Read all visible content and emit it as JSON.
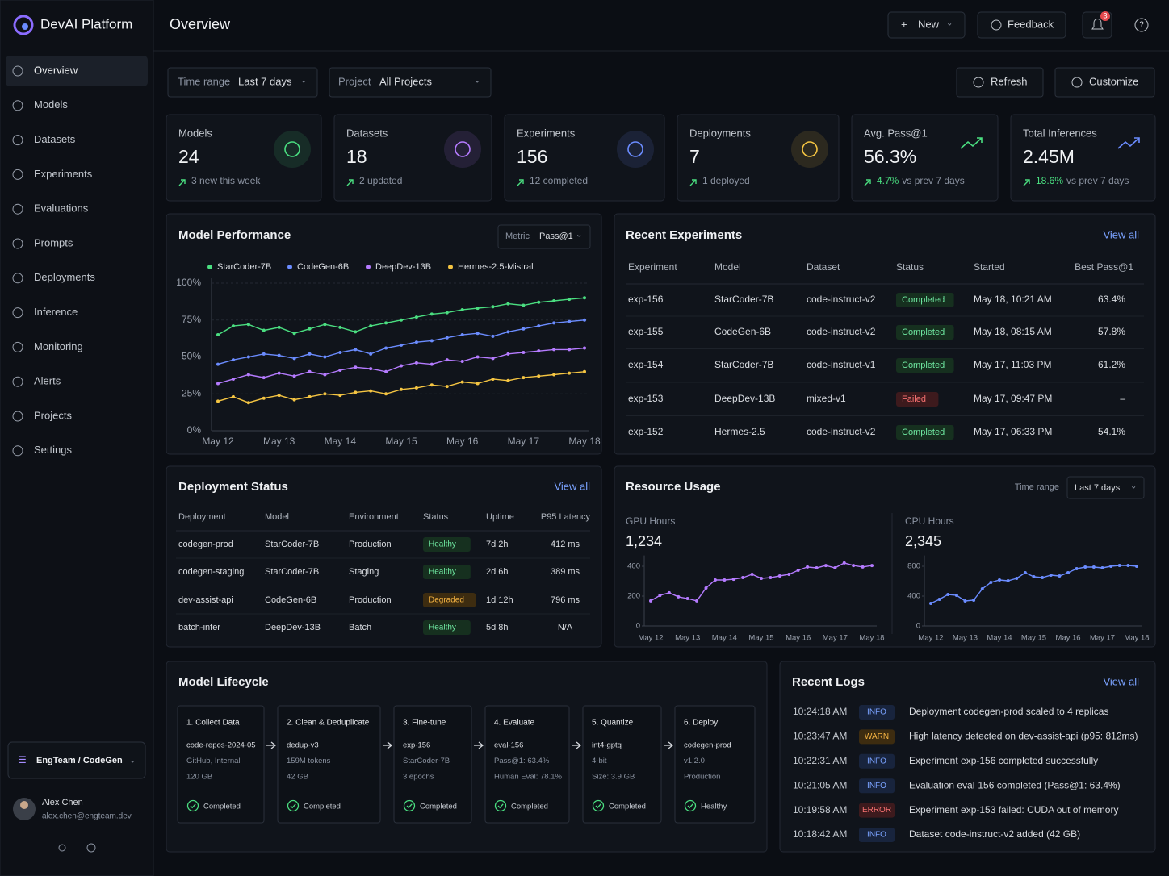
{
  "sidebar": {
    "brand": "DevAI Platform",
    "nav": [
      "Overview",
      "Models",
      "Datasets",
      "Experiments",
      "Evaluations",
      "Prompts",
      "Deployments",
      "Inference",
      "Monitoring",
      "Alerts",
      "Projects",
      "Settings"
    ],
    "workspace": "EngTeam / CodeGen",
    "user": {
      "name": "Alex Chen",
      "email": "alex.chen@engteam.dev"
    }
  },
  "header": {
    "title": "Overview",
    "new": "New",
    "feedback": "Feedback",
    "notifications": "3"
  },
  "filters": {
    "time_range_label": "Time range",
    "time_range": "Last 7 days",
    "project_label": "Project",
    "project": "All Projects",
    "refresh": "Refresh",
    "customize": "Customize"
  },
  "stats": [
    {
      "label": "Models",
      "value": "24",
      "note": "3 new this week"
    },
    {
      "label": "Datasets",
      "value": "18",
      "note": "2 updated"
    },
    {
      "label": "Experiments",
      "value": "156",
      "note": "12 completed"
    },
    {
      "label": "Deployments",
      "value": "7",
      "note": "1 deployed"
    },
    {
      "label": "Avg. Pass@1",
      "value": "56.3%",
      "change": "4.7%",
      "note": "vs prev 7 days"
    },
    {
      "label": "Total Inferences",
      "value": "2.45M",
      "change": "18.6%",
      "note": "vs prev 7 days"
    }
  ],
  "model_performance": {
    "metric_label": "Metric",
    "metric": "Pass@1"
  },
  "resource_usage": {
    "title": "Resource Usage",
    "time_range_label": "Time range",
    "time_range": "Last 7 days"
  },
  "chart_data": [
    {
      "type": "line",
      "title": "Model Performance",
      "categories": [
        "May 12",
        null,
        null,
        null,
        "May 13",
        null,
        null,
        null,
        "May 14",
        null,
        null,
        null,
        "May 15",
        null,
        null,
        null,
        "May 16",
        null,
        null,
        null,
        "May 17",
        null,
        null,
        null,
        "May 18"
      ],
      "series": [
        {
          "name": "StarCoder-7B",
          "color": "#4ade80",
          "values": [
            65,
            71,
            72,
            68,
            70,
            66,
            69,
            72,
            70,
            67,
            71,
            73,
            75,
            77,
            79,
            80,
            82,
            83,
            84,
            86,
            85,
            87,
            88,
            89,
            90
          ]
        },
        {
          "name": "CodeGen-6B",
          "color": "#6b8cff",
          "values": [
            45,
            48,
            50,
            52,
            51,
            49,
            52,
            50,
            53,
            55,
            52,
            56,
            58,
            60,
            61,
            63,
            65,
            66,
            64,
            67,
            69,
            71,
            73,
            74,
            75
          ]
        },
        {
          "name": "DeepDev-13B",
          "color": "#b57bff",
          "values": [
            32,
            35,
            38,
            36,
            39,
            37,
            40,
            38,
            41,
            43,
            42,
            40,
            44,
            46,
            45,
            48,
            47,
            50,
            49,
            52,
            53,
            54,
            55,
            55,
            56
          ]
        },
        {
          "name": "Hermes-2.5-Mistral",
          "color": "#f5c542",
          "values": [
            20,
            23,
            19,
            22,
            24,
            21,
            23,
            25,
            24,
            26,
            27,
            25,
            28,
            29,
            31,
            30,
            33,
            32,
            35,
            34,
            36,
            37,
            38,
            39,
            40
          ]
        }
      ],
      "ylim": [
        0,
        100
      ],
      "yticks": [
        {
          "value": 0,
          "label": "0%"
        },
        {
          "value": 25,
          "label": "25%"
        },
        {
          "value": 50,
          "label": "50%"
        },
        {
          "value": 75,
          "label": "75%"
        },
        {
          "value": 100,
          "label": "100%"
        }
      ],
      "grid": true
    },
    {
      "type": "line",
      "title": "GPU Hours",
      "total": "1,234",
      "color": "#b57bff",
      "categories": [
        "May 12",
        null,
        null,
        null,
        "May 13",
        null,
        null,
        null,
        "May 14",
        null,
        null,
        null,
        "May 15",
        null,
        null,
        null,
        "May 16",
        null,
        null,
        null,
        "May 17",
        null,
        null,
        null,
        "May 18"
      ],
      "values": [
        168,
        205,
        222,
        195,
        184,
        168,
        254,
        308,
        308,
        313,
        324,
        346,
        319,
        324,
        335,
        346,
        373,
        395,
        389,
        405,
        389,
        422,
        405,
        395,
        405
      ],
      "ylim": [
        0,
        440
      ],
      "yticks": [
        0,
        200,
        400
      ],
      "grid": false
    },
    {
      "type": "line",
      "title": "CPU Hours",
      "total": "2,345",
      "color": "#6b8cff",
      "categories": [
        "May 12",
        null,
        null,
        null,
        "May 13",
        null,
        null,
        null,
        "May 14",
        null,
        null,
        null,
        "May 15",
        null,
        null,
        null,
        "May 16",
        null,
        null,
        null,
        "May 17",
        null,
        null,
        null,
        "May 18"
      ],
      "values": [
        303,
        357,
        422,
        411,
        335,
        346,
        497,
        584,
        616,
        605,
        638,
        714,
        659,
        649,
        681,
        670,
        714,
        768,
        789,
        789,
        778,
        800,
        811,
        811,
        800
      ],
      "ylim": [
        0,
        880
      ],
      "yticks": [
        0,
        400,
        800
      ],
      "grid": false
    }
  ],
  "recent_experiments": {
    "title": "Recent Experiments",
    "view_all": "View all",
    "columns": [
      "Experiment",
      "Model",
      "Dataset",
      "Status",
      "Started",
      "Best Pass@1"
    ],
    "rows": [
      [
        "exp-156",
        "StarCoder-7B",
        "code-instruct-v2",
        "Completed",
        "May 18, 10:21 AM",
        "63.4%"
      ],
      [
        "exp-155",
        "CodeGen-6B",
        "code-instruct-v2",
        "Completed",
        "May 18, 08:15 AM",
        "57.8%"
      ],
      [
        "exp-154",
        "StarCoder-7B",
        "code-instruct-v1",
        "Completed",
        "May 17, 11:03 PM",
        "61.2%"
      ],
      [
        "exp-153",
        "DeepDev-13B",
        "mixed-v1",
        "Failed",
        "May 17, 09:47 PM",
        "–"
      ],
      [
        "exp-152",
        "Hermes-2.5",
        "code-instruct-v2",
        "Completed",
        "May 17, 06:33 PM",
        "54.1%"
      ]
    ]
  },
  "deployment_status": {
    "title": "Deployment Status",
    "view_all": "View all",
    "columns": [
      "Deployment",
      "Model",
      "Environment",
      "Status",
      "Uptime",
      "P95 Latency"
    ],
    "rows": [
      [
        "codegen-prod",
        "StarCoder-7B",
        "Production",
        "Healthy",
        "7d 2h",
        "412 ms"
      ],
      [
        "codegen-staging",
        "StarCoder-7B",
        "Staging",
        "Healthy",
        "2d 6h",
        "389 ms"
      ],
      [
        "dev-assist-api",
        "CodeGen-6B",
        "Production",
        "Degraded",
        "1d 12h",
        "796 ms"
      ],
      [
        "batch-infer",
        "DeepDev-13B",
        "Batch",
        "Healthy",
        "5d 8h",
        "N/A"
      ]
    ]
  },
  "model_lifecycle": {
    "title": "Model Lifecycle",
    "steps": [
      {
        "title": "1. Collect Data",
        "lines": [
          "code-repos-2024-05",
          "GitHub, Internal",
          "120 GB"
        ],
        "status": "Completed"
      },
      {
        "title": "2. Clean & Deduplicate",
        "lines": [
          "dedup-v3",
          "159M tokens",
          "42 GB"
        ],
        "status": "Completed"
      },
      {
        "title": "3. Fine-tune",
        "lines": [
          "exp-156",
          "StarCoder-7B",
          "3 epochs"
        ],
        "status": "Completed"
      },
      {
        "title": "4. Evaluate",
        "lines": [
          "eval-156",
          "Pass@1: 63.4%",
          "Human Eval: 78.1%"
        ],
        "status": "Completed"
      },
      {
        "title": "5. Quantize",
        "lines": [
          "int4-gptq",
          "4-bit",
          "Size: 3.9 GB"
        ],
        "status": "Completed"
      },
      {
        "title": "6. Deploy",
        "lines": [
          "codegen-prod",
          "v1.2.0",
          "Production"
        ],
        "status": "Healthy"
      }
    ]
  },
  "recent_logs": {
    "title": "Recent Logs",
    "view_all": "View all",
    "rows": [
      [
        "10:24:18 AM",
        "INFO",
        "Deployment codegen-prod scaled to 4 replicas"
      ],
      [
        "10:23:47 AM",
        "WARN",
        "High latency detected on dev-assist-api (p95: 812ms)"
      ],
      [
        "10:22:31 AM",
        "INFO",
        "Experiment exp-156 completed successfully"
      ],
      [
        "10:21:05 AM",
        "INFO",
        "Evaluation eval-156 completed (Pass@1: 63.4%)"
      ],
      [
        "10:19:58 AM",
        "ERROR",
        "Experiment exp-153 failed: CUDA out of memory"
      ],
      [
        "10:18:42 AM",
        "INFO",
        "Dataset code-instruct-v2 added (42 GB)"
      ]
    ]
  }
}
